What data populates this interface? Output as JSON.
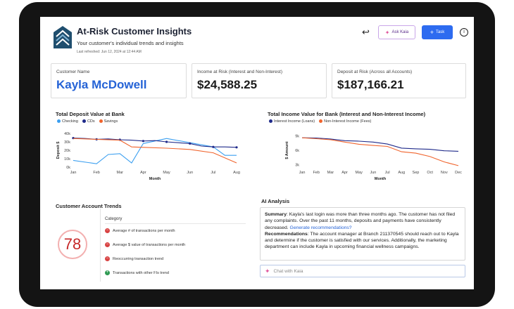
{
  "header": {
    "title": "At-Risk Customer Insights",
    "subtitle": "Your customer's individual trends and insights",
    "refreshed": "Last refreshed: Jun 12, 2024 at 12:44 AM",
    "ask_label": "Ask Kaia",
    "task_label": "Task",
    "info_glyph": "i"
  },
  "cards": {
    "customer_label": "Customer Name",
    "customer_name": "Kayla McDowell",
    "income_label": "Income at Risk (Interest and Non-Interest)",
    "income_value": "$24,588.25",
    "deposit_label": "Deposit at Risk (Across all Accounts)",
    "deposit_value": "$187,166.21"
  },
  "chart_data": [
    {
      "type": "line",
      "title": "Total Deposit Value at Bank",
      "xlabel": "Month",
      "ylabel": "Deposit $",
      "categories": [
        "Jan",
        "Feb",
        "Mar",
        "Apr",
        "May",
        "Jun",
        "Jul",
        "Aug"
      ],
      "y_ticks": [
        "40k",
        "30k",
        "20k",
        "10k",
        "0k"
      ],
      "ylim": [
        0,
        40000
      ],
      "series": [
        {
          "name": "Checking",
          "color": "#3b9ff0",
          "x": [
            0,
            1,
            1.5,
            2,
            2.5,
            3,
            4,
            5,
            6,
            6.5,
            7
          ],
          "values": [
            8000,
            4000,
            15000,
            16000,
            5000,
            28000,
            34000,
            29000,
            24000,
            14000,
            14000
          ]
        },
        {
          "name": "CDs",
          "color": "#1f2a8a",
          "x": [
            0,
            0.5,
            1,
            1.5,
            2,
            2.5,
            3,
            3.5,
            4,
            4.5,
            5,
            5.5,
            6,
            6.5,
            7
          ],
          "values": [
            34500,
            34000,
            33000,
            33500,
            32500,
            32000,
            31000,
            31500,
            30000,
            29000,
            28000,
            25000,
            24000,
            24000,
            23500
          ]
        },
        {
          "name": "Savings",
          "color": "#f0642d",
          "x": [
            0,
            1,
            2,
            2.5,
            3,
            4,
            5,
            6,
            7
          ],
          "values": [
            34000,
            33000,
            32000,
            24000,
            23500,
            22500,
            21000,
            17000,
            5000
          ]
        }
      ],
      "legend": "top-left"
    },
    {
      "type": "line",
      "title": "Total Income Value for Bank (Interest and Non-Interest Income)",
      "xlabel": "Month",
      "ylabel": "$ Amount",
      "categories": [
        "Jan",
        "Feb",
        "Mar",
        "Apr",
        "May",
        "Jun",
        "Jul",
        "Aug",
        "Sep",
        "Oct",
        "Nov",
        "Dec"
      ],
      "y_ticks": [
        "9k",
        "6k",
        "3k"
      ],
      "ylim": [
        2500,
        9500
      ],
      "series": [
        {
          "name": "Interest Income (Loans)",
          "color": "#1f2a8a",
          "values": [
            8600,
            8550,
            8350,
            8000,
            7900,
            7700,
            7300,
            6450,
            6300,
            6200,
            5900,
            5800
          ]
        },
        {
          "name": "Non-Interest Income (Fees)",
          "color": "#f0642d",
          "values": [
            8600,
            8400,
            8200,
            7700,
            7250,
            7000,
            6800,
            5700,
            5400,
            4700,
            3600,
            2800
          ]
        }
      ],
      "legend": "top-left"
    }
  ],
  "trends": {
    "title": "Customer Account Trends",
    "score": "78",
    "category_header": "Category",
    "items": [
      {
        "label": "Average # of transactions per month",
        "icon": "minus-circle-icon",
        "color": "#d84343",
        "glyph": "−"
      },
      {
        "label": "Average $ value of transactions per month",
        "icon": "minus-circle-icon",
        "color": "#d84343",
        "glyph": "−"
      },
      {
        "label": "Reoccurring transaction trend",
        "icon": "minus-circle-icon",
        "color": "#d84343",
        "glyph": "−"
      },
      {
        "label": "Transactions with other FIs trend",
        "icon": "plus-circle-icon",
        "color": "#2e9a52",
        "glyph": "+"
      }
    ]
  },
  "ai": {
    "title": "AI Analysis",
    "summary_label": "Summary",
    "summary_text": ": Kayla's last login was more than three months ago. The customer has not filed any complaints. Over the past 11 months, deposits and payments have consistently decreased.",
    "summary_link": "Generate recommendations?",
    "rec_label": "Recommendations",
    "rec_text": ": The account manager at Branch 211370545 should reach out to Kayla and determine if the customer is satisfied with our services. Additionally, the marketing department can include Kayla in upcoming financial wellness campaigns.",
    "chat_placeholder": "Chat with Kaia"
  }
}
